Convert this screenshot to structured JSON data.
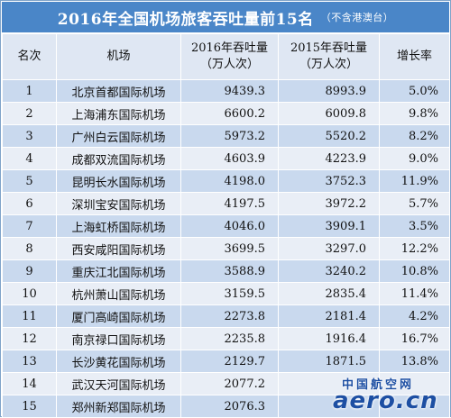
{
  "title": {
    "main": "2016年全国机场旅客吞吐量前15名",
    "note": "（不含港澳台）"
  },
  "table": {
    "headers": {
      "rank": "名次",
      "airport": "机场",
      "y2016_line1": "2016年吞吐量",
      "y2016_line2": "（万人次）",
      "y2015_line1": "2015年吞吐量",
      "y2015_line2": "（万人次）",
      "growth": "增长率"
    },
    "rows": [
      {
        "rank": "1",
        "airport": "北京首都国际机场",
        "y2016": "9439.3",
        "y2015": "8993.9",
        "growth": "5.0%"
      },
      {
        "rank": "2",
        "airport": "上海浦东国际机场",
        "y2016": "6600.2",
        "y2015": "6009.8",
        "growth": "9.8%"
      },
      {
        "rank": "3",
        "airport": "广州白云国际机场",
        "y2016": "5973.2",
        "y2015": "5520.2",
        "growth": "8.2%"
      },
      {
        "rank": "4",
        "airport": "成都双流国际机场",
        "y2016": "4603.9",
        "y2015": "4223.9",
        "growth": "9.0%"
      },
      {
        "rank": "5",
        "airport": "昆明长水国际机场",
        "y2016": "4198.0",
        "y2015": "3752.3",
        "growth": "11.9%"
      },
      {
        "rank": "6",
        "airport": "深圳宝安国际机场",
        "y2016": "4197.5",
        "y2015": "3972.2",
        "growth": "5.7%"
      },
      {
        "rank": "7",
        "airport": "上海虹桥国际机场",
        "y2016": "4046.0",
        "y2015": "3909.1",
        "growth": "3.5%"
      },
      {
        "rank": "8",
        "airport": "西安咸阳国际机场",
        "y2016": "3699.5",
        "y2015": "3297.0",
        "growth": "12.2%"
      },
      {
        "rank": "9",
        "airport": "重庆江北国际机场",
        "y2016": "3588.9",
        "y2015": "3240.2",
        "growth": "10.8%"
      },
      {
        "rank": "10",
        "airport": "杭州萧山国际机场",
        "y2016": "3159.5",
        "y2015": "2835.4",
        "growth": "11.4%"
      },
      {
        "rank": "11",
        "airport": "厦门高崎国际机场",
        "y2016": "2273.8",
        "y2015": "2181.4",
        "growth": "4.2%"
      },
      {
        "rank": "12",
        "airport": "南京禄口国际机场",
        "y2016": "2235.8",
        "y2015": "1916.4",
        "growth": "16.7%"
      },
      {
        "rank": "13",
        "airport": "长沙黄花国际机场",
        "y2016": "2129.7",
        "y2015": "1871.5",
        "growth": "13.8%"
      },
      {
        "rank": "14",
        "airport": "武汉天河国际机场",
        "y2016": "2077.2",
        "y2015": "",
        "growth": ""
      },
      {
        "rank": "15",
        "airport": "郑州新郑国际机场",
        "y2016": "2076.3",
        "y2015": "",
        "growth": ""
      }
    ]
  },
  "watermark": {
    "cn": "中国航空网",
    "en": "aero.cn"
  }
}
